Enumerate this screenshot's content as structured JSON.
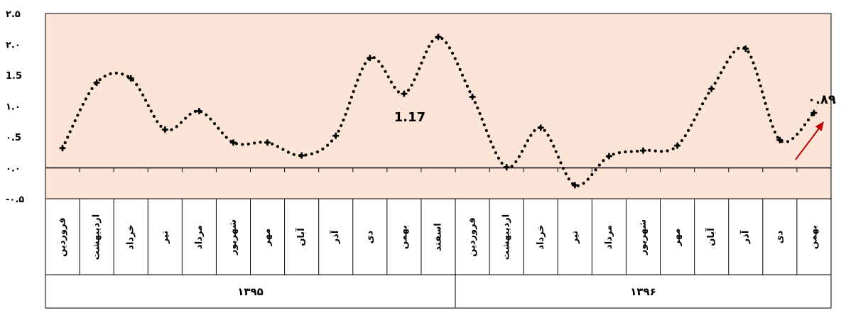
{
  "chart_data": {
    "type": "line",
    "title": "",
    "xlabel": "",
    "ylabel": "",
    "ylim": [
      -0.5,
      2.5
    ],
    "y_ticks": [
      {
        "value": 2.5,
        "label": "۲.۵"
      },
      {
        "value": 2.0,
        "label": "۲.۰"
      },
      {
        "value": 1.5,
        "label": "1.5"
      },
      {
        "value": 1.0,
        "label": "۱.۰"
      },
      {
        "value": 0.5,
        "label": "۰.5"
      },
      {
        "value": 0.0,
        "label": "۰.۰"
      },
      {
        "value": -0.5,
        "label": "-۰.۵"
      }
    ],
    "categories": [
      "فروردین",
      "اردیبهشت",
      "خرداد",
      "تیر",
      "مرداد",
      "شهریور",
      "مهر",
      "آبان",
      "آذر",
      "دی",
      "بهمن",
      "اسفند",
      "فروردین",
      "اردیبهشت",
      "خرداد",
      "تیر",
      "مرداد",
      "شهریور",
      "مهر",
      "آبان",
      "آذر",
      "دی",
      "بهمن"
    ],
    "years": [
      {
        "label": "۱۳۹۵",
        "span": 12
      },
      {
        "label": "۱۳۹۶",
        "span": 11
      }
    ],
    "series": [
      {
        "values": [
          0.32,
          1.38,
          1.45,
          0.62,
          0.92,
          0.41,
          0.41,
          0.2,
          0.52,
          1.78,
          1.2,
          2.12,
          1.15,
          0.01,
          0.65,
          -0.28,
          0.19,
          0.28,
          0.36,
          1.28,
          1.93,
          0.45,
          0.89
        ]
      }
    ],
    "line_color": "#000000",
    "plot_background": "#fce4d6",
    "grid": false,
    "annotations": [
      {
        "text": "1.17"
      },
      {
        "text": "۰.۸۹"
      }
    ],
    "arrow_color": "#c00000"
  }
}
